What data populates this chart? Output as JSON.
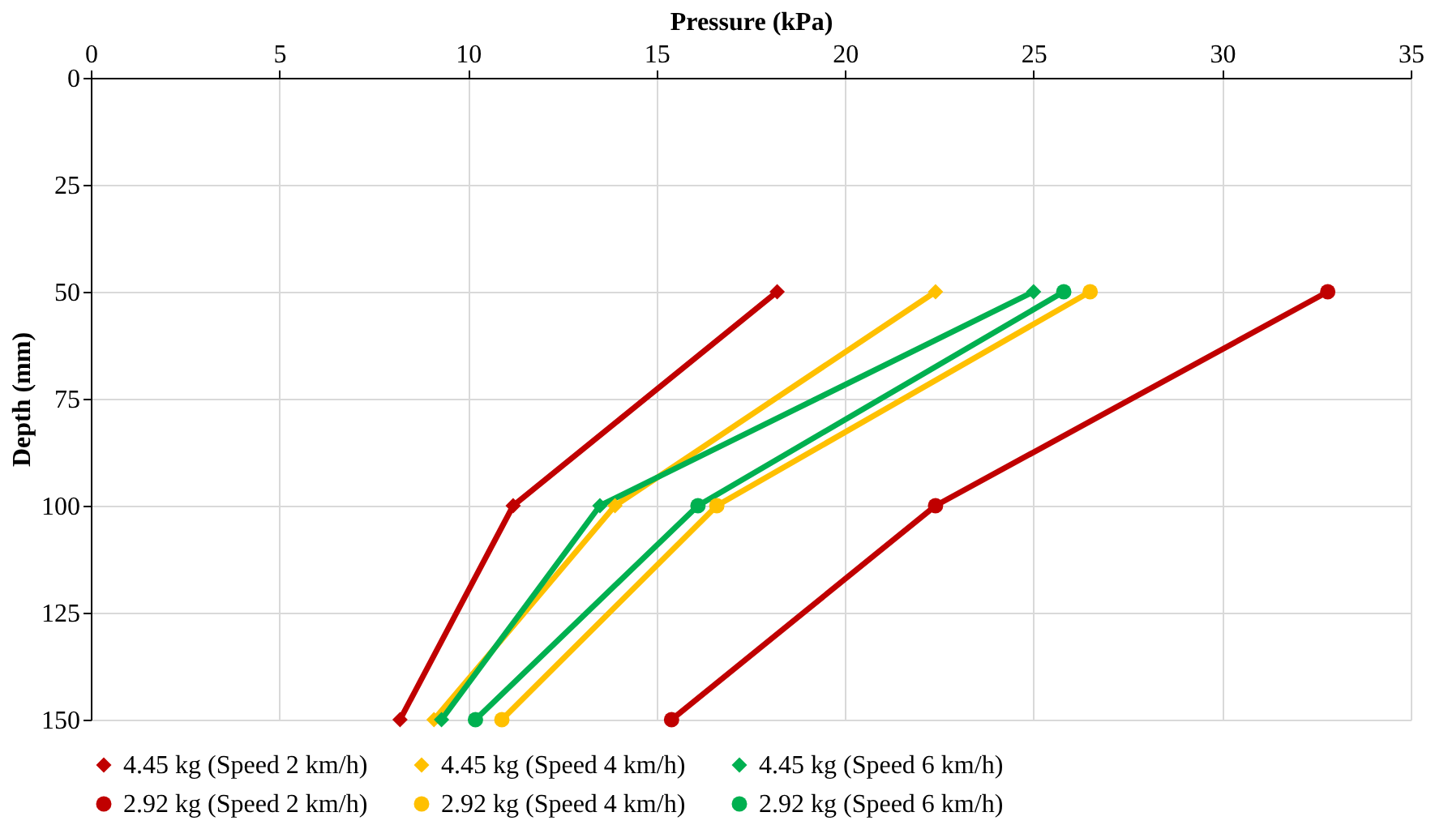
{
  "chart_data": {
    "type": "line",
    "xlabel": "Pressure (kPa)",
    "ylabel": "Depth (mm)",
    "xlim": [
      0,
      35
    ],
    "xticks": [
      0,
      5,
      10,
      15,
      20,
      25,
      30,
      35
    ],
    "ylim": [
      150,
      0
    ],
    "yticks": [
      0,
      25,
      50,
      75,
      100,
      125,
      150
    ],
    "grid": true,
    "legend": "bottom",
    "line_style": "solid",
    "series": [
      {
        "name": "4.45 kg (Speed 2 km/h)",
        "color": "#c00000",
        "marker": "diamond",
        "x": [
          18.2,
          11.2,
          8.2
        ],
        "values": [
          50,
          100,
          150
        ]
      },
      {
        "name": "4.45 kg (Speed 4 km/h)",
        "color": "#ffc000",
        "marker": "diamond",
        "x": [
          22.4,
          13.9,
          9.1
        ],
        "values": [
          50,
          100,
          150
        ]
      },
      {
        "name": "4.45 kg (Speed 6 km/h)",
        "color": "#00b050",
        "marker": "diamond",
        "x": [
          25.0,
          13.5,
          9.3
        ],
        "values": [
          50,
          100,
          150
        ]
      },
      {
        "name": "2.92 kg (Speed 2 km/h)",
        "color": "#c00000",
        "marker": "circle",
        "x": [
          32.8,
          22.4,
          15.4
        ],
        "values": [
          50,
          100,
          150
        ]
      },
      {
        "name": "2.92 kg (Speed 4 km/h)",
        "color": "#ffc000",
        "marker": "circle",
        "x": [
          26.5,
          16.6,
          10.9
        ],
        "values": [
          50,
          100,
          150
        ]
      },
      {
        "name": "2.92 kg (Speed 6 km/h)",
        "color": "#00b050",
        "marker": "circle",
        "x": [
          25.8,
          16.1,
          10.2
        ],
        "values": [
          50,
          100,
          150
        ]
      }
    ]
  }
}
